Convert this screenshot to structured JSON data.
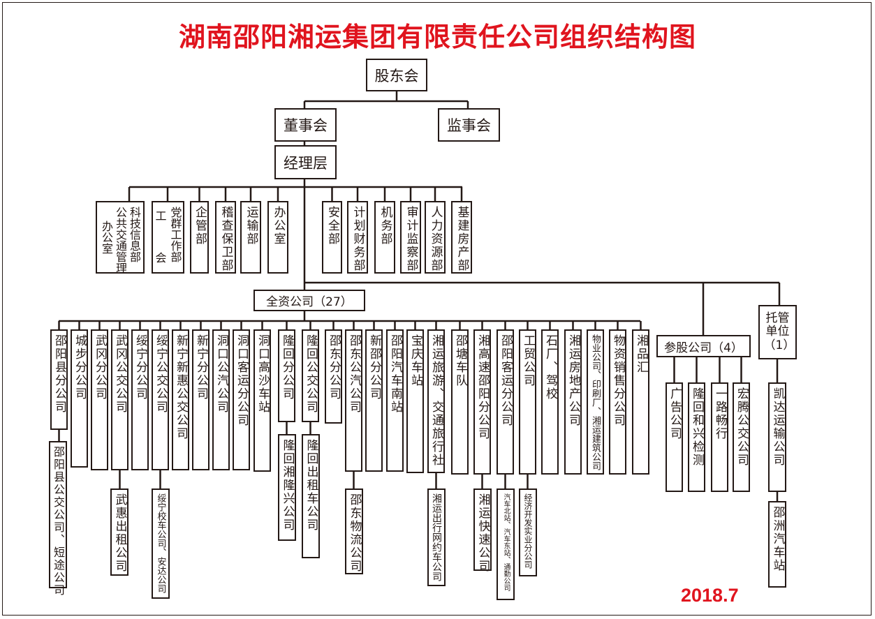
{
  "title": "湖南邵阳湘运集团有限责任公司组织结构图",
  "date": "2018.7",
  "colors": {
    "title": "#e0141e",
    "lines": "#231815"
  },
  "top": {
    "shareholders": "股东会",
    "board": "董事会",
    "supervisors": "监事会",
    "management": "经理层"
  },
  "departments": [
    {
      "lines": [
        "科技信息部",
        "公共交通管理",
        "办公室"
      ]
    },
    {
      "lines": [
        "党群工作部",
        "工会"
      ]
    },
    {
      "lines": [
        "企管部"
      ]
    },
    {
      "lines": [
        "稽查保卫部"
      ]
    },
    {
      "lines": [
        "运输部"
      ]
    },
    {
      "lines": [
        "办公室"
      ]
    },
    {
      "lines": [
        "安全部"
      ]
    },
    {
      "lines": [
        "计划财务部"
      ]
    },
    {
      "lines": [
        "机务部"
      ]
    },
    {
      "lines": [
        "审计监察部"
      ]
    },
    {
      "lines": [
        "人力资源部"
      ]
    },
    {
      "lines": [
        "基建房产部"
      ]
    }
  ],
  "wholly_owned": {
    "label": "全资公司（27）",
    "companies": [
      {
        "name": "邵阳县分公司",
        "subs": [
          "邵阳县公交公司、短途公司"
        ]
      },
      {
        "name": "城步分公司",
        "subs": []
      },
      {
        "name": "武冈分公司",
        "subs": []
      },
      {
        "name": "武冈公交公司",
        "subs": [
          "武惠出租公司"
        ]
      },
      {
        "name": "绥宁分公司",
        "subs": []
      },
      {
        "name": "绥宁公交公司",
        "subs": [
          "绥宁校车公司、安达公司"
        ]
      },
      {
        "name": "新宁新惠公交公司",
        "subs": []
      },
      {
        "name": "新宁分公司",
        "subs": []
      },
      {
        "name": "洞口公汽公司",
        "subs": []
      },
      {
        "name": "洞口客运分公司",
        "subs": []
      },
      {
        "name": "洞口高沙车站",
        "subs": []
      },
      {
        "name": "隆回分公司",
        "subs": [
          "隆回湘隆兴公司"
        ]
      },
      {
        "name": "隆回公交公司",
        "subs": [
          "隆回出租车公司"
        ]
      },
      {
        "name": "邵东分公司",
        "subs": []
      },
      {
        "name": "邵东公汽公司",
        "subs": [
          "邵东物流公司"
        ]
      },
      {
        "name": "新邵分公司",
        "subs": []
      },
      {
        "name": "邵阳汽车南站",
        "subs": []
      },
      {
        "name": "宝庆车站",
        "subs": []
      },
      {
        "name": "湘运旅游、交通旅行社",
        "subs": [
          "湘运出行网约车公司"
        ]
      },
      {
        "name": "邵塘车队",
        "subs": []
      },
      {
        "name": "湘高速邵阳分公司",
        "subs": [
          "湘运快速公司"
        ]
      },
      {
        "name": "邵阳客运分公司",
        "subs": [
          "汽车北站、汽车东站、通勤公司"
        ]
      },
      {
        "name": "工贸公司",
        "subs": [
          "经济开发实业分公司"
        ]
      },
      {
        "name": "石厂、驾校",
        "subs": []
      },
      {
        "name": "湘运房地产公司",
        "subs": []
      },
      {
        "name": "物业公司、印刷厂、湘运建筑公司",
        "subs": []
      },
      {
        "name": "物资销售分公司",
        "subs": []
      },
      {
        "name": "湘品汇",
        "subs": []
      }
    ]
  },
  "equity": {
    "label": "参股公司（4）",
    "companies": [
      {
        "name": "广告公司",
        "subs": []
      },
      {
        "name": "隆回和兴检测",
        "subs": []
      },
      {
        "name": "一路畅行",
        "subs": []
      },
      {
        "name": "宏腾公交公司",
        "subs": []
      }
    ]
  },
  "entrusted": {
    "label": "托管单位（1）",
    "companies": [
      {
        "name": "凯达运输公司",
        "subs": [
          "邵洲汽车站"
        ]
      }
    ]
  }
}
